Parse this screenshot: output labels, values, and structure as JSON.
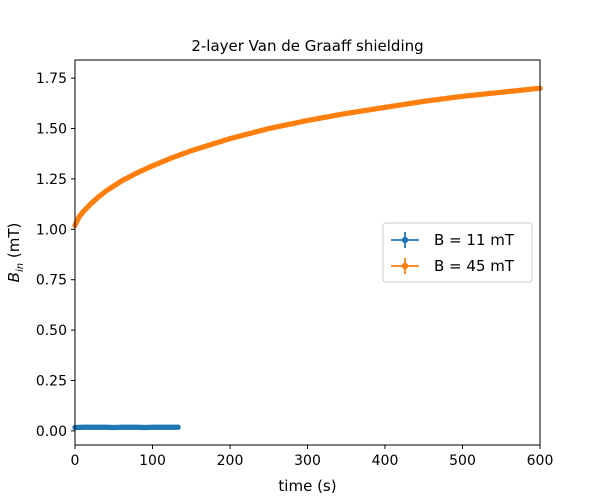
{
  "chart_data": {
    "type": "scatter",
    "title": "2-layer Van de Graaff shielding",
    "xlabel": "time (s)",
    "ylabel_main": "B",
    "ylabel_sub": "in",
    "ylabel_unit": " (mT)",
    "xlim": [
      0,
      600
    ],
    "ylim": [
      -0.07,
      1.84
    ],
    "xticks": [
      0,
      100,
      200,
      300,
      400,
      500,
      600
    ],
    "xtick_labels": [
      "0",
      "100",
      "200",
      "300",
      "400",
      "500",
      "600"
    ],
    "yticks": [
      0.0,
      0.25,
      0.5,
      0.75,
      1.0,
      1.25,
      1.5,
      1.75
    ],
    "ytick_labels": [
      "0.00",
      "0.25",
      "0.50",
      "0.75",
      "1.00",
      "1.25",
      "1.50",
      "1.75"
    ],
    "grid": false,
    "legend_position": "center-right",
    "series": [
      {
        "name": "B = 11 mT",
        "color": "#1f77b4",
        "x": [
          0,
          10,
          20,
          30,
          40,
          50,
          60,
          70,
          80,
          90,
          100,
          110,
          120,
          133
        ],
        "y": [
          0.017,
          0.018,
          0.018,
          0.018,
          0.018,
          0.017,
          0.018,
          0.018,
          0.018,
          0.017,
          0.018,
          0.018,
          0.018,
          0.018
        ]
      },
      {
        "name": "B = 45 mT",
        "color": "#ff7f0e",
        "x": [
          0,
          5,
          10,
          20,
          30,
          40,
          50,
          60,
          80,
          100,
          125,
          150,
          175,
          200,
          250,
          300,
          350,
          400,
          450,
          500,
          550,
          600
        ],
        "y": [
          1.02,
          1.06,
          1.085,
          1.125,
          1.16,
          1.19,
          1.215,
          1.24,
          1.28,
          1.315,
          1.355,
          1.39,
          1.42,
          1.45,
          1.5,
          1.54,
          1.575,
          1.605,
          1.635,
          1.66,
          1.68,
          1.7
        ]
      }
    ]
  }
}
